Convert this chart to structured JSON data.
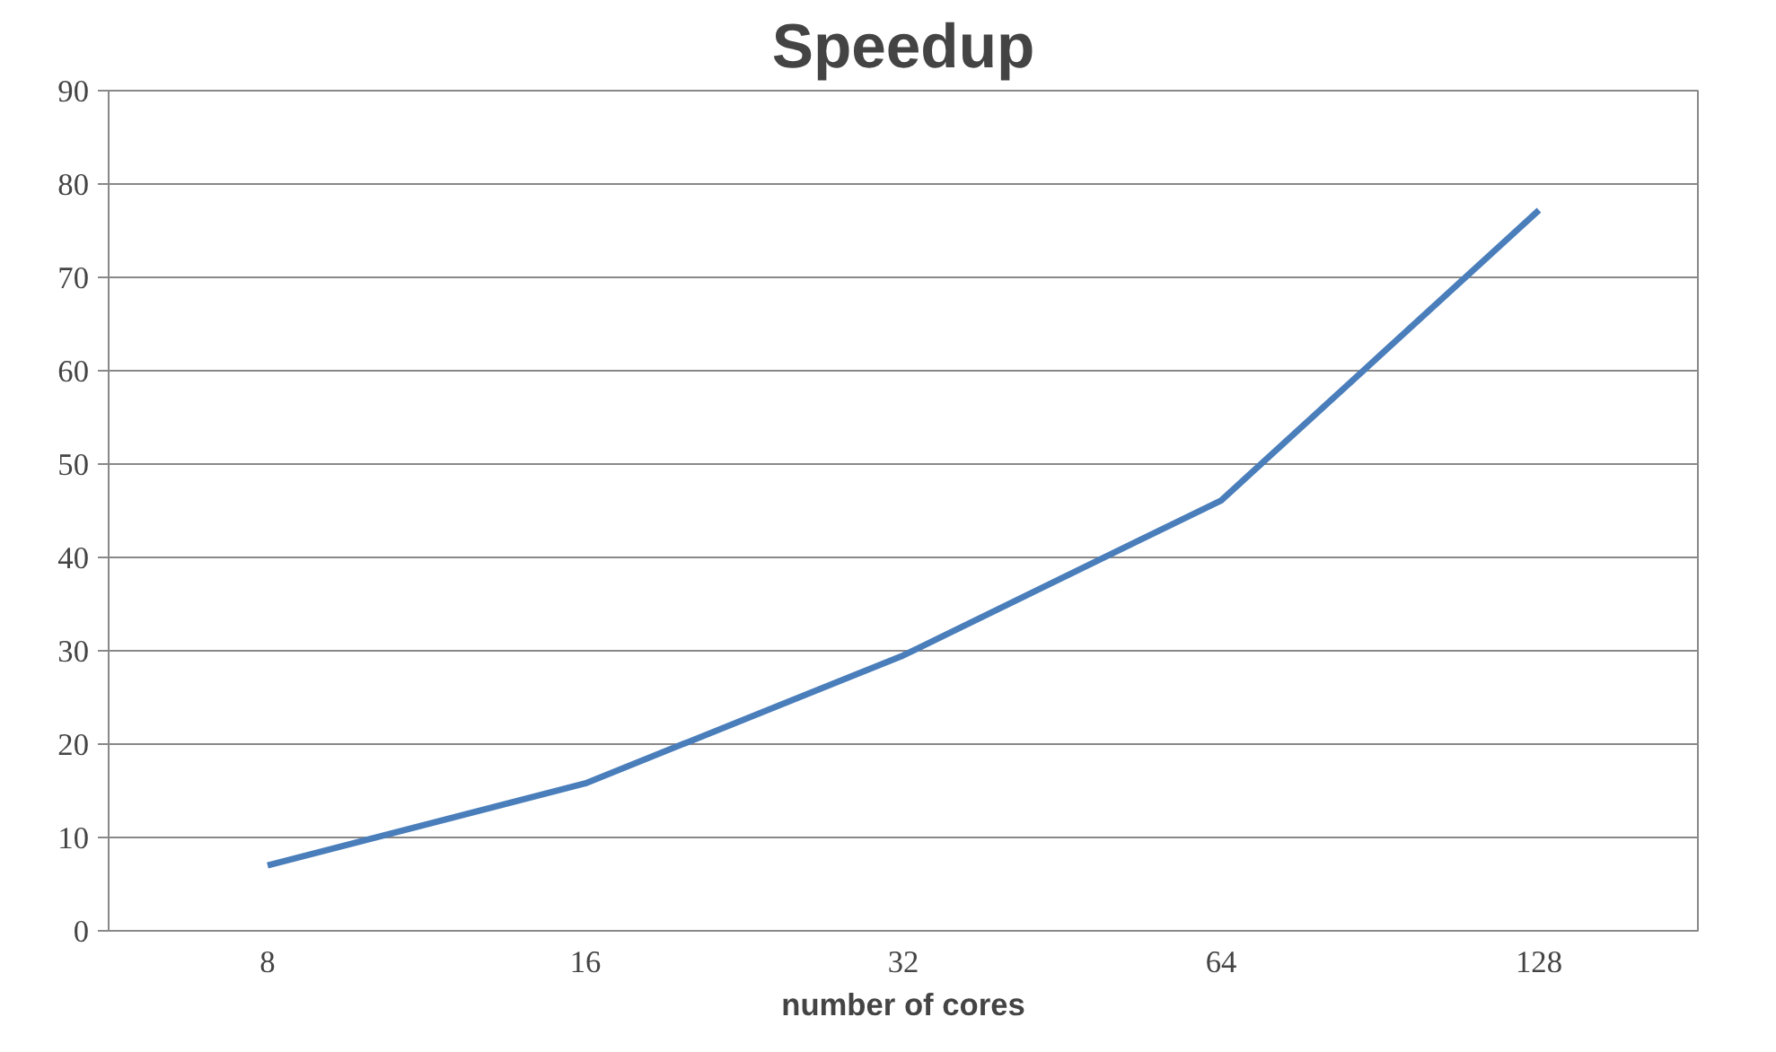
{
  "chart_data": {
    "type": "line",
    "title": "Speedup",
    "xlabel": "number of cores",
    "categories": [
      "8",
      "16",
      "32",
      "64",
      "128"
    ],
    "series": [
      {
        "color": "#4a7ebb",
        "values": [
          7.0,
          15.8,
          29.5,
          46.1,
          77.2
        ]
      }
    ],
    "ylim": [
      0,
      90
    ],
    "yticks": [
      0,
      10,
      20,
      30,
      40,
      50,
      60,
      70,
      80,
      90
    ],
    "grid": "y",
    "marker": "none",
    "line_style": "solid"
  }
}
